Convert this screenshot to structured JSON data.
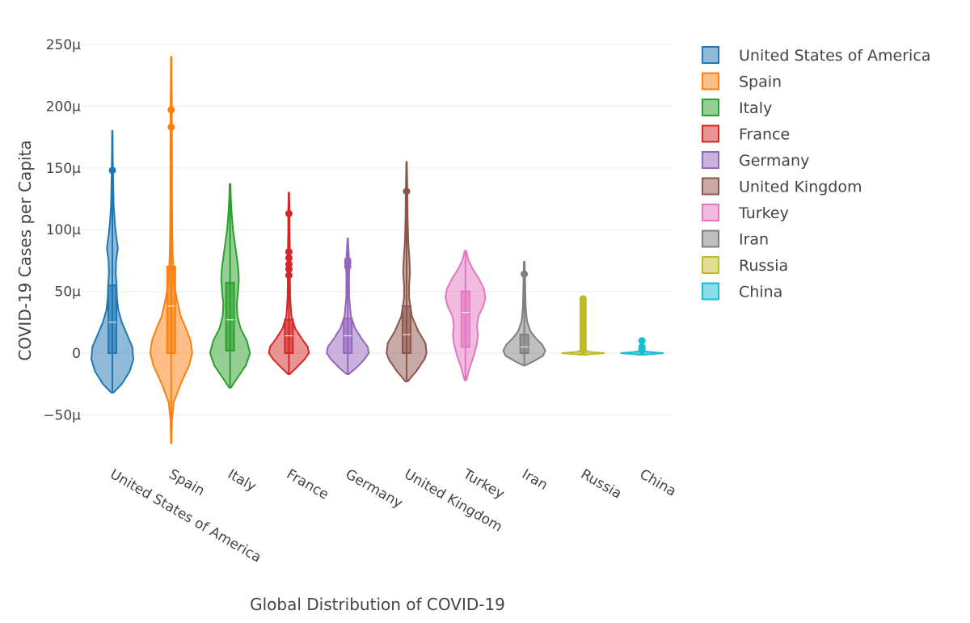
{
  "chart_data": {
    "type": "violin",
    "xlabel": "Global Distribution of COVID-19",
    "ylabel": "COVID-19 Cases per Capita",
    "ylim": [
      -85,
      260
    ],
    "yticks": [
      {
        "value": 250,
        "label": "250μ"
      },
      {
        "value": 200,
        "label": "200μ"
      },
      {
        "value": 150,
        "label": "150μ"
      },
      {
        "value": 100,
        "label": "100μ"
      },
      {
        "value": 50,
        "label": "50μ"
      },
      {
        "value": 0,
        "label": "0"
      },
      {
        "value": -50,
        "label": "−50μ"
      }
    ],
    "grid": true,
    "legend_position": "right",
    "series": [
      {
        "name": "United States of America",
        "color": "#1f77b4",
        "min": -32,
        "max": 180,
        "q1": 0,
        "median": 25,
        "q3": 55,
        "upper_fence": 148,
        "outliers": [
          148
        ],
        "profile": [
          [
            -32,
            0.05
          ],
          [
            -25,
            0.45
          ],
          [
            -15,
            0.82
          ],
          [
            -5,
            1.0
          ],
          [
            5,
            0.95
          ],
          [
            15,
            0.7
          ],
          [
            25,
            0.45
          ],
          [
            35,
            0.28
          ],
          [
            45,
            0.22
          ],
          [
            55,
            0.2
          ],
          [
            65,
            0.16
          ],
          [
            75,
            0.18
          ],
          [
            85,
            0.26
          ],
          [
            95,
            0.18
          ],
          [
            105,
            0.12
          ],
          [
            120,
            0.06
          ],
          [
            140,
            0.04
          ],
          [
            160,
            0.02
          ],
          [
            180,
            0.01
          ]
        ]
      },
      {
        "name": "Spain",
        "color": "#ff7f0e",
        "min": -73,
        "max": 240,
        "q1": 0,
        "median": 38,
        "q3": 70,
        "upper_fence": 182,
        "outliers": [
          197,
          183
        ],
        "profile": [
          [
            -73,
            0.01
          ],
          [
            -55,
            0.03
          ],
          [
            -40,
            0.12
          ],
          [
            -25,
            0.45
          ],
          [
            -10,
            0.85
          ],
          [
            0,
            1.0
          ],
          [
            10,
            0.92
          ],
          [
            20,
            0.7
          ],
          [
            30,
            0.45
          ],
          [
            45,
            0.25
          ],
          [
            60,
            0.12
          ],
          [
            80,
            0.07
          ],
          [
            100,
            0.05
          ],
          [
            130,
            0.04
          ],
          [
            160,
            0.04
          ],
          [
            185,
            0.03
          ],
          [
            200,
            0.03
          ],
          [
            220,
            0.02
          ],
          [
            240,
            0.01
          ]
        ]
      },
      {
        "name": "Italy",
        "color": "#2ca02c",
        "min": -28,
        "max": 137,
        "q1": 2,
        "median": 27,
        "q3": 57,
        "upper_fence": 120,
        "outliers": [],
        "profile": [
          [
            -28,
            0.04
          ],
          [
            -20,
            0.35
          ],
          [
            -10,
            0.75
          ],
          [
            0,
            0.95
          ],
          [
            10,
            0.8
          ],
          [
            20,
            0.5
          ],
          [
            30,
            0.35
          ],
          [
            40,
            0.32
          ],
          [
            50,
            0.38
          ],
          [
            60,
            0.42
          ],
          [
            70,
            0.38
          ],
          [
            80,
            0.3
          ],
          [
            90,
            0.22
          ],
          [
            100,
            0.14
          ],
          [
            115,
            0.07
          ],
          [
            125,
            0.04
          ],
          [
            137,
            0.02
          ]
        ]
      },
      {
        "name": "France",
        "color": "#d62728",
        "min": -17,
        "max": 130,
        "q1": 0,
        "median": 14,
        "q3": 27,
        "upper_fence": 60,
        "outliers": [
          113,
          82,
          77,
          72,
          68,
          63
        ],
        "profile": [
          [
            -17,
            0.04
          ],
          [
            -12,
            0.35
          ],
          [
            -5,
            0.75
          ],
          [
            0,
            0.95
          ],
          [
            5,
            0.9
          ],
          [
            12,
            0.6
          ],
          [
            20,
            0.3
          ],
          [
            30,
            0.12
          ],
          [
            45,
            0.06
          ],
          [
            60,
            0.05
          ],
          [
            80,
            0.05
          ],
          [
            100,
            0.03
          ],
          [
            115,
            0.03
          ],
          [
            130,
            0.01
          ]
        ]
      },
      {
        "name": "Germany",
        "color": "#9467bd",
        "min": -17,
        "max": 93,
        "q1": 0,
        "median": 14,
        "q3": 28,
        "upper_fence": 60,
        "outliers": [
          75,
          73,
          70
        ],
        "profile": [
          [
            -17,
            0.05
          ],
          [
            -12,
            0.4
          ],
          [
            -5,
            0.8
          ],
          [
            0,
            1.0
          ],
          [
            5,
            0.95
          ],
          [
            12,
            0.65
          ],
          [
            20,
            0.35
          ],
          [
            30,
            0.15
          ],
          [
            45,
            0.07
          ],
          [
            60,
            0.06
          ],
          [
            72,
            0.08
          ],
          [
            80,
            0.05
          ],
          [
            93,
            0.01
          ]
        ]
      },
      {
        "name": "United Kingdom",
        "color": "#8c564b",
        "min": -23,
        "max": 155,
        "q1": 0,
        "median": 15,
        "q3": 38,
        "upper_fence": 100,
        "outliers": [
          131
        ],
        "profile": [
          [
            -23,
            0.05
          ],
          [
            -15,
            0.45
          ],
          [
            -5,
            0.85
          ],
          [
            0,
            0.95
          ],
          [
            8,
            0.9
          ],
          [
            18,
            0.55
          ],
          [
            30,
            0.25
          ],
          [
            45,
            0.12
          ],
          [
            55,
            0.12
          ],
          [
            65,
            0.16
          ],
          [
            75,
            0.14
          ],
          [
            90,
            0.08
          ],
          [
            110,
            0.05
          ],
          [
            130,
            0.04
          ],
          [
            155,
            0.01
          ]
        ]
      },
      {
        "name": "Turkey",
        "color": "#e377c2",
        "min": -22,
        "max": 83,
        "q1": 5,
        "median": 33,
        "q3": 50,
        "upper_fence": 62,
        "outliers": [],
        "profile": [
          [
            -22,
            0.04
          ],
          [
            -12,
            0.2
          ],
          [
            -2,
            0.4
          ],
          [
            8,
            0.55
          ],
          [
            15,
            0.6
          ],
          [
            22,
            0.55
          ],
          [
            30,
            0.62
          ],
          [
            38,
            0.85
          ],
          [
            45,
            0.95
          ],
          [
            52,
            0.88
          ],
          [
            60,
            0.65
          ],
          [
            68,
            0.35
          ],
          [
            75,
            0.15
          ],
          [
            83,
            0.03
          ]
        ]
      },
      {
        "name": "Iran",
        "color": "#7f7f7f",
        "min": -10,
        "max": 74,
        "q1": 0,
        "median": 5,
        "q3": 15,
        "upper_fence": 40,
        "outliers": [
          64
        ],
        "profile": [
          [
            -10,
            0.05
          ],
          [
            -6,
            0.5
          ],
          [
            -2,
            0.9
          ],
          [
            2,
            1.0
          ],
          [
            7,
            0.85
          ],
          [
            12,
            0.55
          ],
          [
            18,
            0.28
          ],
          [
            26,
            0.13
          ],
          [
            36,
            0.07
          ],
          [
            48,
            0.05
          ],
          [
            60,
            0.04
          ],
          [
            74,
            0.02
          ]
        ]
      },
      {
        "name": "Russia",
        "color": "#bcbd22",
        "min": -1,
        "max": 45,
        "q1": 0,
        "median": 0,
        "q3": 0,
        "upper_fence": 1,
        "outliers": [
          44,
          42,
          40,
          38,
          36,
          34,
          32,
          30,
          28,
          26,
          24,
          22,
          20,
          18,
          16,
          14,
          12,
          10,
          8,
          6,
          4,
          3,
          2
        ],
        "profile": [
          [
            -1,
            0.3
          ],
          [
            0,
            1.0
          ],
          [
            1,
            0.3
          ],
          [
            3,
            0.02
          ],
          [
            45,
            0.01
          ]
        ]
      },
      {
        "name": "China",
        "color": "#17becf",
        "min": -1,
        "max": 11,
        "q1": 0,
        "median": 0,
        "q3": 0,
        "upper_fence": 1,
        "outliers": [
          10,
          5,
          3,
          2
        ],
        "profile": [
          [
            -1,
            0.3
          ],
          [
            0,
            1.0
          ],
          [
            1,
            0.3
          ],
          [
            2,
            0.02
          ],
          [
            11,
            0.01
          ]
        ]
      }
    ]
  }
}
